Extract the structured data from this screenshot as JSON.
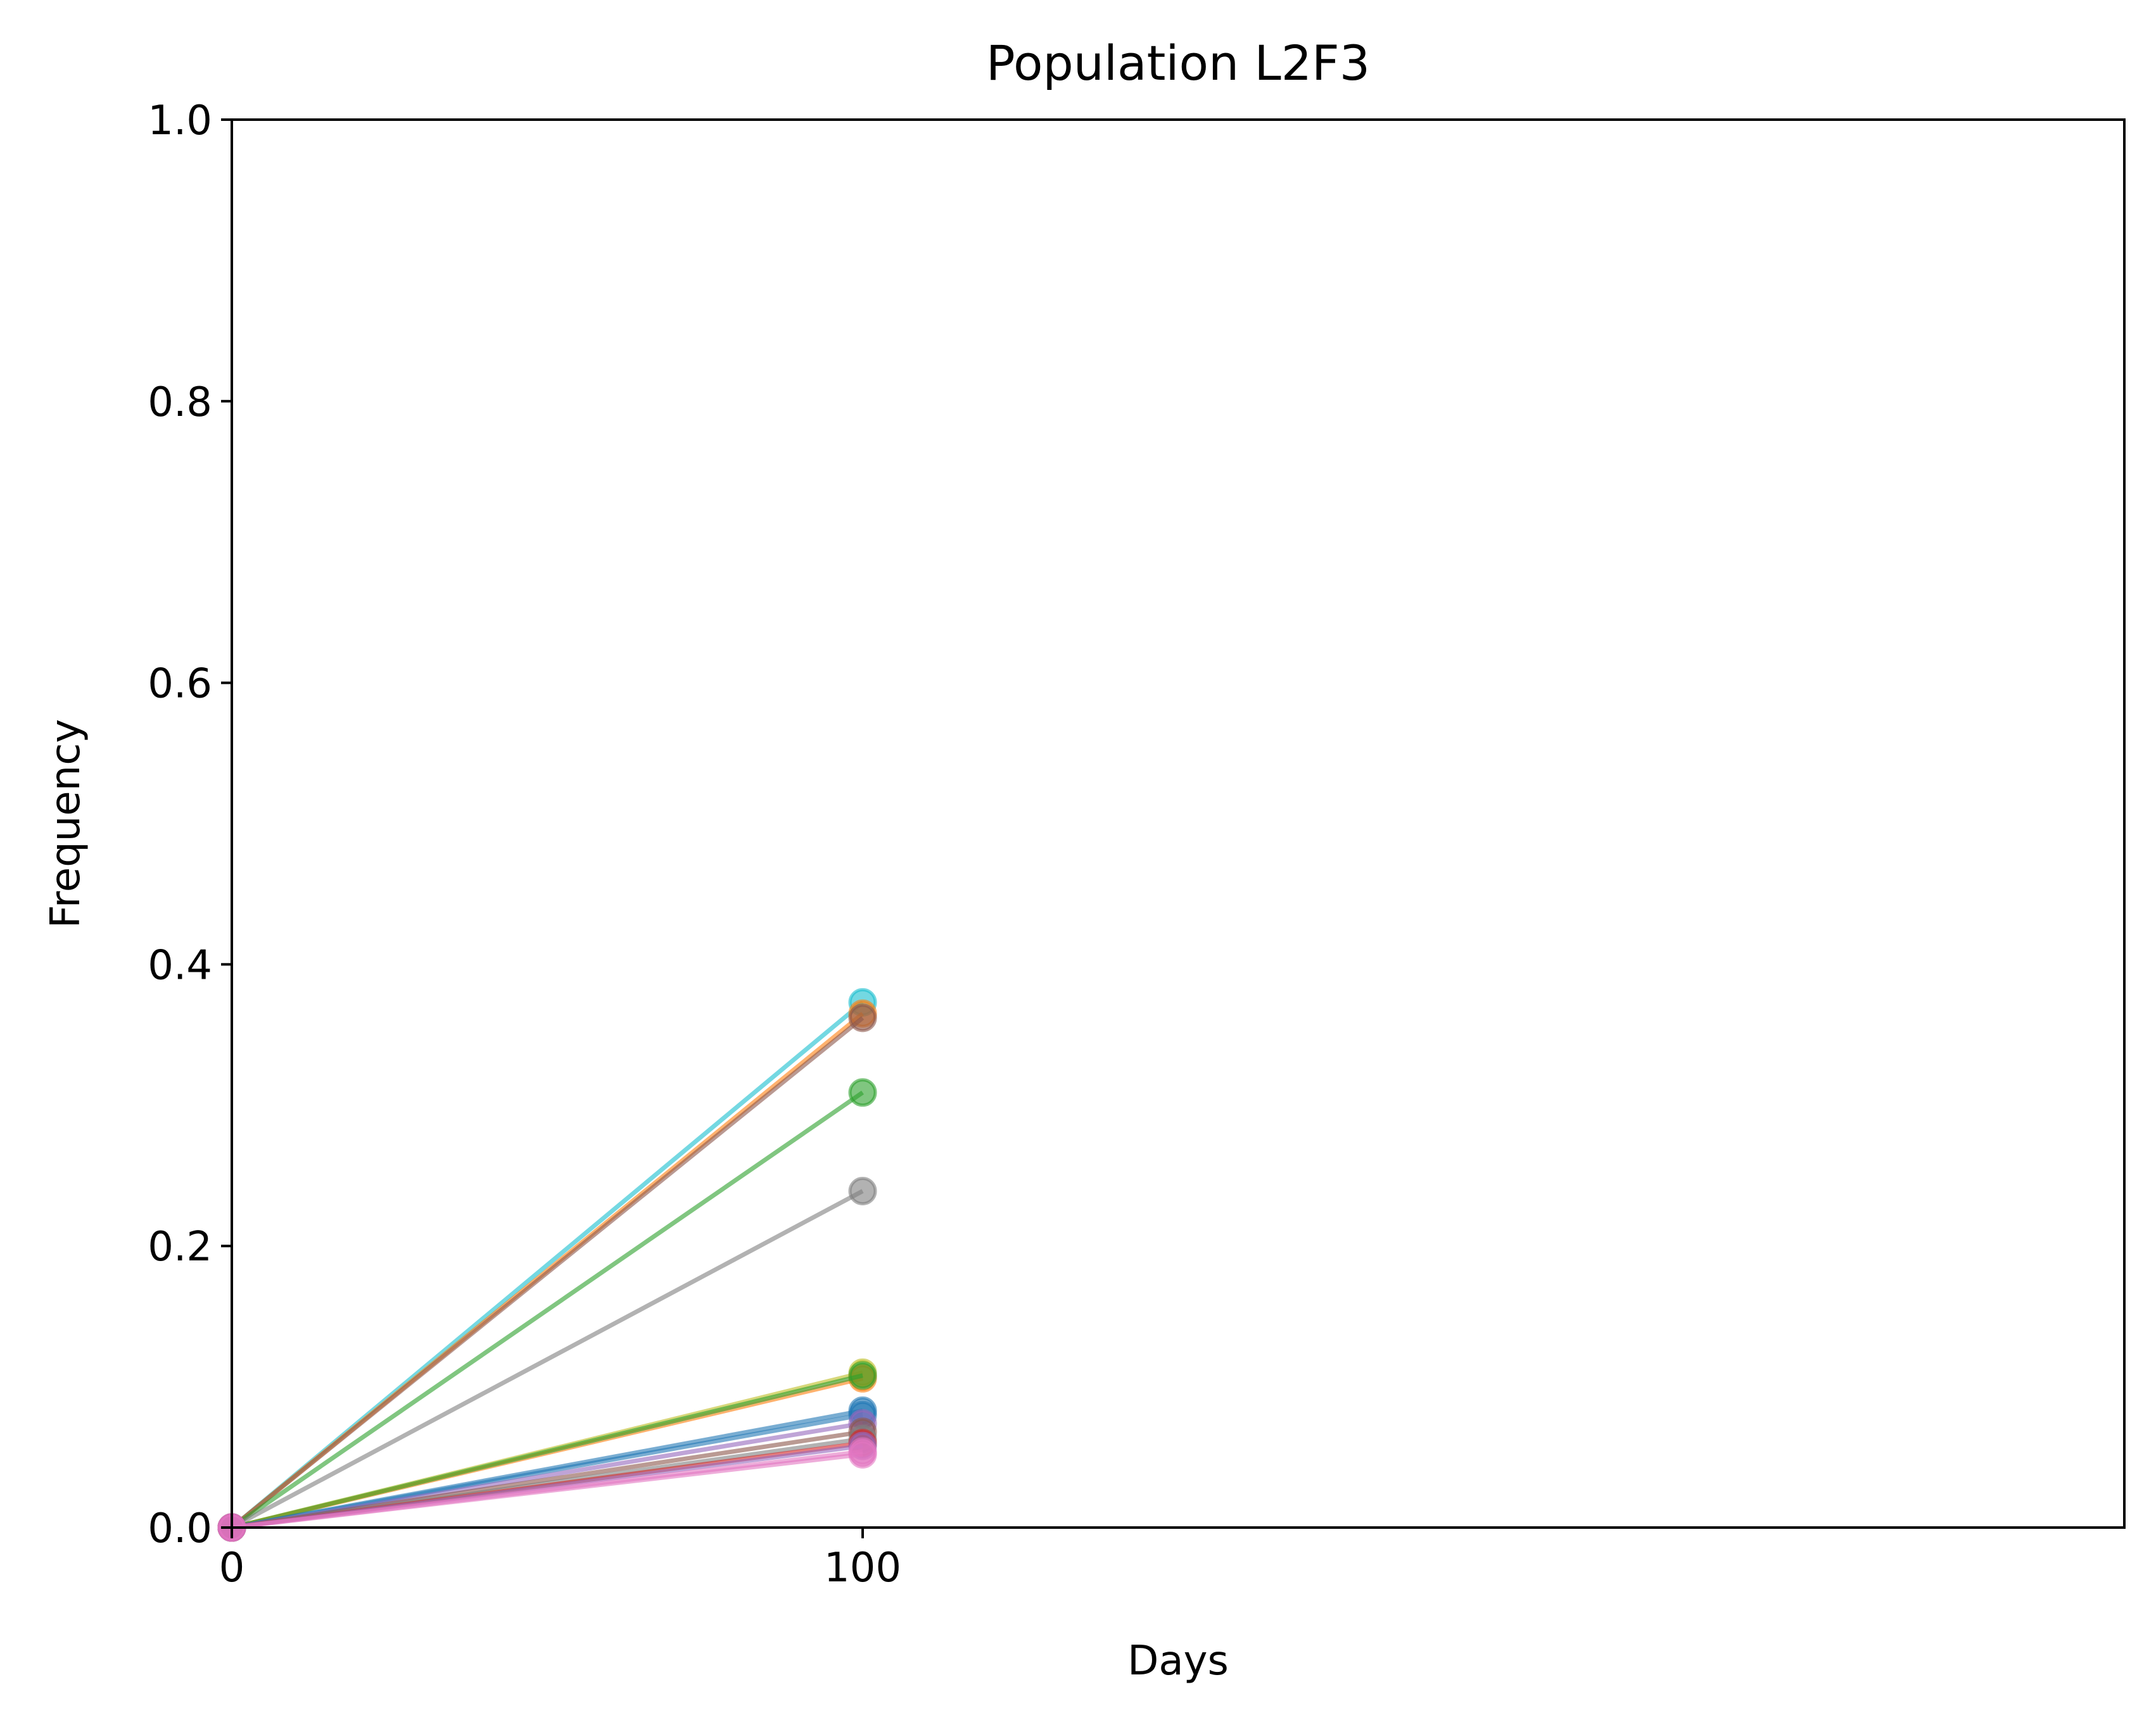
{
  "chart_data": {
    "type": "line",
    "title": "Population L2F3",
    "xlabel": "Days",
    "ylabel": "Frequency",
    "xlim": [
      0,
      300
    ],
    "ylim": [
      0.0,
      1.0
    ],
    "x_ticks": [
      0,
      100
    ],
    "x_tick_labels": [
      "0",
      "100"
    ],
    "y_ticks": [
      0.0,
      0.2,
      0.4,
      0.6,
      0.8,
      1.0
    ],
    "y_tick_labels": [
      "0.0",
      "0.2",
      "0.4",
      "0.6",
      "0.8",
      "1.0"
    ],
    "grid": false,
    "legend": "none",
    "x": [
      0,
      100
    ],
    "series": [
      {
        "color": "#17becf",
        "values": [
          0.0,
          0.373
        ]
      },
      {
        "color": "#ff7f0e",
        "values": [
          0.0,
          0.365
        ]
      },
      {
        "color": "#8c564b",
        "values": [
          0.0,
          0.362
        ]
      },
      {
        "color": "#2ca02c",
        "values": [
          0.0,
          0.309
        ]
      },
      {
        "color": "#7f7f7f",
        "values": [
          0.0,
          0.239
        ]
      },
      {
        "color": "#bcbd22",
        "values": [
          0.0,
          0.11
        ]
      },
      {
        "color": "#ff7f0e",
        "values": [
          0.0,
          0.106
        ]
      },
      {
        "color": "#2ca02c",
        "values": [
          0.0,
          0.108
        ]
      },
      {
        "color": "#1f77b4",
        "values": [
          0.0,
          0.083
        ]
      },
      {
        "color": "#1f77b4",
        "values": [
          0.0,
          0.08
        ]
      },
      {
        "color": "#9467bd",
        "values": [
          0.0,
          0.074
        ]
      },
      {
        "color": "#8c564b",
        "values": [
          0.0,
          0.068
        ]
      },
      {
        "color": "#7f7f7f",
        "values": [
          0.0,
          0.063
        ]
      },
      {
        "color": "#d62728",
        "values": [
          0.0,
          0.06
        ]
      },
      {
        "color": "#9467bd",
        "values": [
          0.0,
          0.058
        ]
      },
      {
        "color": "#e377c2",
        "values": [
          0.0,
          0.054
        ]
      },
      {
        "color": "#e377c2",
        "values": [
          0.0,
          0.052
        ]
      }
    ]
  }
}
